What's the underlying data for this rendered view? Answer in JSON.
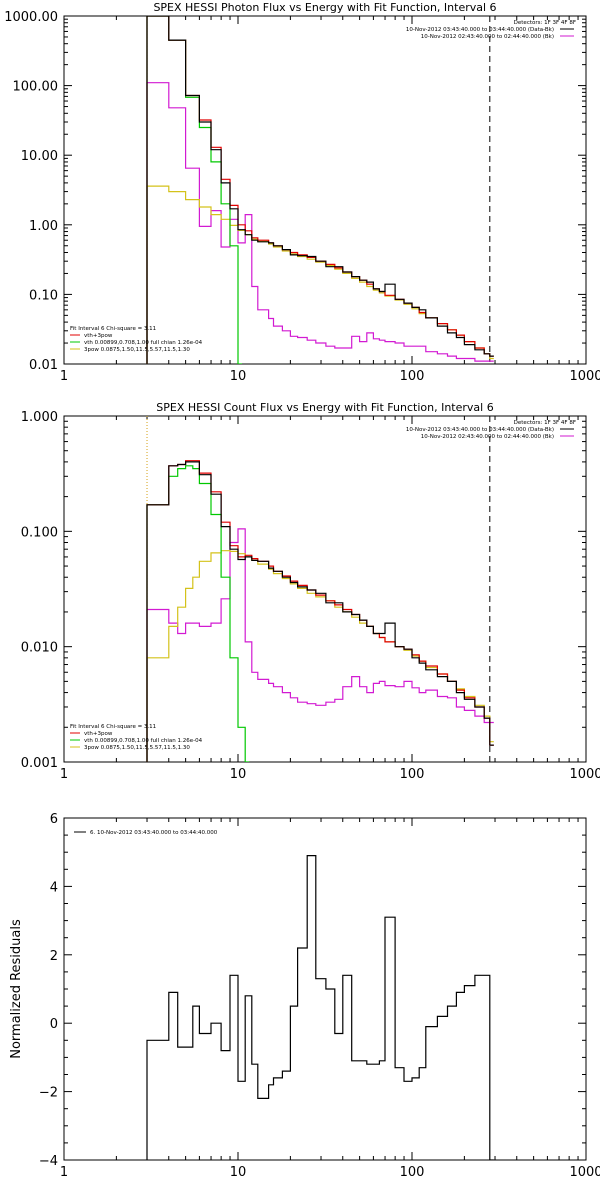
{
  "chart_data": [
    {
      "type": "line",
      "title": "SPEX HESSI Photon Flux vs Energy with Fit Function, Interval 6",
      "xlabel": "",
      "ylabel": "",
      "xscale": "log",
      "yscale": "log",
      "xlim": [
        1,
        1000
      ],
      "ylim": [
        0.01,
        1000
      ],
      "xticks": [
        "1",
        "10",
        "100",
        "1000"
      ],
      "yticks": [
        "0.01",
        "0.10",
        "1.00",
        "10.00",
        "100.00",
        "1000.00"
      ],
      "info_lines": [
        "Detectors: 1F 3F 4F 8F",
        "10-Nov-2012 03:43:40.000 to 03:44:40.000 (Data-Bk)",
        "10-Nov-2012 02:43:40.000 to 02:44:40.000 (Bk)"
      ],
      "legend_header": "Fit Interval 6   Chi-square = 3.11",
      "legend_position": "bottom-left",
      "vlines": [
        {
          "x": 3,
          "style": "dotted",
          "color": "#d4a017"
        },
        {
          "x": 280,
          "style": "dashed",
          "color": "#000000"
        }
      ],
      "series": [
        {
          "name": "vth+3pow",
          "color": "#e00000",
          "style": "step",
          "x": [
            3,
            3.5,
            4,
            5,
            6,
            7,
            8,
            9,
            10,
            11,
            12,
            13,
            15,
            16,
            18,
            20,
            22,
            25,
            28,
            32,
            36,
            40,
            45,
            50,
            55,
            60,
            65,
            70,
            80,
            90,
            100,
            110,
            120,
            140,
            160,
            180,
            200,
            230,
            260,
            280
          ],
          "y": [
            1000,
            1000,
            450,
            72,
            32,
            13,
            4.5,
            1.9,
            1.0,
            0.82,
            0.65,
            0.6,
            0.55,
            0.5,
            0.44,
            0.4,
            0.37,
            0.34,
            0.3,
            0.27,
            0.24,
            0.21,
            0.18,
            0.16,
            0.14,
            0.12,
            0.11,
            0.097,
            0.085,
            0.075,
            0.065,
            0.055,
            0.046,
            0.038,
            0.031,
            0.026,
            0.021,
            0.017,
            0.014,
            0.013
          ]
        },
        {
          "name": "Data-Bk",
          "color": "#000000",
          "style": "step",
          "x": [
            3,
            3.5,
            4,
            5,
            6,
            7,
            8,
            9,
            10,
            11,
            12,
            13,
            15,
            16,
            18,
            20,
            22,
            25,
            28,
            32,
            36,
            40,
            45,
            50,
            55,
            60,
            65,
            70,
            80,
            90,
            100,
            110,
            120,
            140,
            160,
            180,
            200,
            230,
            260,
            280
          ],
          "y": [
            1000,
            1000,
            450,
            72,
            30,
            12,
            4.0,
            1.7,
            0.85,
            0.72,
            0.6,
            0.57,
            0.55,
            0.5,
            0.44,
            0.37,
            0.36,
            0.35,
            0.3,
            0.25,
            0.25,
            0.21,
            0.18,
            0.16,
            0.15,
            0.12,
            0.11,
            0.14,
            0.085,
            0.075,
            0.065,
            0.06,
            0.046,
            0.035,
            0.028,
            0.024,
            0.019,
            0.016,
            0.014,
            0.013
          ]
        },
        {
          "name": "vth 0.00899,0.708,1.00  full chian 1.26e-04",
          "color": "#00c800",
          "style": "step",
          "x": [
            3,
            3.5,
            4,
            5,
            6,
            7,
            8,
            9,
            10
          ],
          "y": [
            1000,
            1000,
            450,
            68,
            25,
            8,
            2.0,
            0.5,
            0.01
          ]
        },
        {
          "name": "3pow 0.0875,1.50,11.5,5.57,11.5,1.30",
          "color": "#d4c21a",
          "style": "step",
          "x": [
            3,
            3.5,
            4,
            5,
            6,
            7,
            8,
            9,
            10,
            11,
            12,
            13,
            15,
            16,
            18,
            20,
            22,
            25,
            28,
            32,
            36,
            40,
            45,
            50,
            55,
            60,
            65,
            70,
            80,
            90,
            100,
            110,
            120,
            140,
            160,
            180,
            200,
            230,
            260,
            280
          ],
          "y": [
            3.6,
            3.6,
            3.0,
            2.3,
            1.8,
            1.4,
            1.2,
            0.98,
            0.83,
            0.72,
            0.62,
            0.58,
            0.53,
            0.48,
            0.42,
            0.38,
            0.35,
            0.32,
            0.29,
            0.26,
            0.23,
            0.2,
            0.17,
            0.15,
            0.13,
            0.115,
            0.105,
            0.095,
            0.083,
            0.072,
            0.062,
            0.053,
            0.046,
            0.038,
            0.031,
            0.026,
            0.021,
            0.017,
            0.014,
            0.012
          ]
        },
        {
          "name": "Bk",
          "color": "#d21ad2",
          "style": "step",
          "x": [
            3,
            3.5,
            4,
            5,
            6,
            7,
            8,
            9,
            10,
            11,
            12,
            13,
            15,
            16,
            18,
            20,
            22,
            25,
            28,
            32,
            36,
            40,
            45,
            50,
            55,
            60,
            65,
            70,
            80,
            90,
            100,
            110,
            120,
            140,
            160,
            180,
            200,
            230,
            260,
            280
          ],
          "y": [
            110,
            110,
            48,
            6.5,
            0.95,
            1.6,
            0.48,
            1.2,
            0.55,
            1.4,
            0.13,
            0.06,
            0.045,
            0.035,
            0.03,
            0.025,
            0.024,
            0.022,
            0.02,
            0.018,
            0.017,
            0.017,
            0.025,
            0.021,
            0.028,
            0.023,
            0.022,
            0.021,
            0.02,
            0.018,
            0.018,
            0.018,
            0.015,
            0.014,
            0.013,
            0.012,
            0.012,
            0.011,
            0.011,
            0.011
          ]
        }
      ]
    },
    {
      "type": "line",
      "title": "SPEX HESSI Count Flux vs Energy with Fit Function, Interval 6",
      "xlabel": "",
      "ylabel": "",
      "xscale": "log",
      "yscale": "log",
      "xlim": [
        1,
        1000
      ],
      "ylim": [
        0.001,
        1.0
      ],
      "xticks": [
        "1",
        "10",
        "100",
        "1000"
      ],
      "yticks": [
        "0.001",
        "0.010",
        "0.100",
        "1.000"
      ],
      "info_lines": [
        "Detectors: 1F 3F 4F 8F",
        "10-Nov-2012 03:43:40.000 to 03:44:40.000 (Data-Bk)",
        "10-Nov-2012 02:43:40.000 to 02:44:40.000 (Bk)"
      ],
      "legend_header": "Fit Interval 6   Chi-square = 3.11",
      "legend_position": "bottom-left",
      "vlines": [
        {
          "x": 3,
          "style": "dotted",
          "color": "#d4a017"
        },
        {
          "x": 280,
          "style": "dashed",
          "color": "#000000"
        }
      ],
      "series": [
        {
          "name": "vth+3pow",
          "color": "#e00000",
          "style": "step",
          "x": [
            3,
            3.5,
            4,
            4.5,
            5,
            5.5,
            6,
            7,
            8,
            9,
            10,
            11,
            12,
            13,
            15,
            16,
            18,
            20,
            22,
            25,
            28,
            32,
            36,
            40,
            45,
            50,
            55,
            60,
            65,
            70,
            80,
            90,
            100,
            110,
            120,
            140,
            160,
            180,
            200,
            230,
            260,
            280
          ],
          "y": [
            0.17,
            0.17,
            0.37,
            0.38,
            0.41,
            0.41,
            0.32,
            0.22,
            0.12,
            0.075,
            0.06,
            0.062,
            0.058,
            0.055,
            0.05,
            0.045,
            0.041,
            0.037,
            0.034,
            0.031,
            0.028,
            0.025,
            0.023,
            0.021,
            0.019,
            0.017,
            0.015,
            0.013,
            0.012,
            0.011,
            0.01,
            0.0095,
            0.0085,
            0.0075,
            0.0068,
            0.0058,
            0.005,
            0.0042,
            0.0036,
            0.003,
            0.0024,
            0.0014
          ]
        },
        {
          "name": "Data-Bk",
          "color": "#000000",
          "style": "step",
          "x": [
            3,
            3.5,
            4,
            4.5,
            5,
            5.5,
            6,
            7,
            8,
            9,
            10,
            11,
            12,
            13,
            15,
            16,
            18,
            20,
            22,
            25,
            28,
            32,
            36,
            40,
            45,
            50,
            55,
            60,
            65,
            70,
            80,
            90,
            100,
            110,
            120,
            140,
            160,
            180,
            200,
            230,
            260,
            280
          ],
          "y": [
            0.17,
            0.17,
            0.37,
            0.38,
            0.4,
            0.4,
            0.31,
            0.21,
            0.11,
            0.07,
            0.057,
            0.06,
            0.056,
            0.055,
            0.048,
            0.045,
            0.04,
            0.036,
            0.033,
            0.031,
            0.029,
            0.024,
            0.024,
            0.02,
            0.019,
            0.017,
            0.015,
            0.013,
            0.013,
            0.016,
            0.01,
            0.0095,
            0.008,
            0.0072,
            0.0063,
            0.0055,
            0.005,
            0.004,
            0.0035,
            0.003,
            0.0024,
            0.0014
          ]
        },
        {
          "name": "vth 0.00899,0.708,1.00  full chian 1.26e-04",
          "color": "#00c800",
          "style": "step",
          "x": [
            3,
            3.5,
            4,
            4.5,
            5,
            5.5,
            6,
            7,
            8,
            9,
            10,
            11
          ],
          "y": [
            0.17,
            0.17,
            0.3,
            0.35,
            0.37,
            0.35,
            0.26,
            0.14,
            0.04,
            0.008,
            0.002,
            0.001
          ]
        },
        {
          "name": "3pow 0.0875,1.50,11.5,5.57,11.5,1.30",
          "color": "#d4c21a",
          "style": "step",
          "x": [
            3,
            3.5,
            4,
            4.5,
            5,
            5.5,
            6,
            7,
            8,
            9,
            10,
            11,
            12,
            13,
            15,
            16,
            18,
            20,
            22,
            25,
            28,
            32,
            36,
            40,
            45,
            50,
            55,
            60,
            65,
            70,
            80,
            90,
            100,
            110,
            120,
            140,
            160,
            180,
            200,
            230,
            260,
            280
          ],
          "y": [
            0.008,
            0.008,
            0.015,
            0.022,
            0.032,
            0.04,
            0.055,
            0.065,
            0.068,
            0.067,
            0.064,
            0.06,
            0.056,
            0.052,
            0.047,
            0.043,
            0.039,
            0.035,
            0.032,
            0.029,
            0.027,
            0.025,
            0.022,
            0.02,
            0.018,
            0.016,
            0.015,
            0.013,
            0.012,
            0.011,
            0.01,
            0.0093,
            0.0083,
            0.0075,
            0.0066,
            0.0058,
            0.005,
            0.0043,
            0.0037,
            0.0031,
            0.0025,
            0.0015
          ]
        },
        {
          "name": "Bk",
          "color": "#d21ad2",
          "style": "step",
          "x": [
            3,
            3.5,
            4,
            4.5,
            5,
            5.5,
            6,
            7,
            8,
            9,
            10,
            11,
            12,
            13,
            15,
            16,
            18,
            20,
            22,
            25,
            28,
            32,
            36,
            40,
            45,
            50,
            55,
            60,
            65,
            70,
            80,
            90,
            100,
            110,
            120,
            140,
            160,
            180,
            200,
            230,
            260,
            280
          ],
          "y": [
            0.021,
            0.021,
            0.016,
            0.013,
            0.016,
            0.016,
            0.015,
            0.016,
            0.026,
            0.08,
            0.105,
            0.011,
            0.006,
            0.0052,
            0.0048,
            0.0045,
            0.004,
            0.0036,
            0.0033,
            0.0032,
            0.0031,
            0.0033,
            0.0035,
            0.0045,
            0.0055,
            0.0045,
            0.004,
            0.0048,
            0.005,
            0.0046,
            0.0045,
            0.005,
            0.0044,
            0.004,
            0.0042,
            0.0037,
            0.0036,
            0.003,
            0.0028,
            0.0025,
            0.0022,
            0.0022
          ]
        }
      ]
    },
    {
      "type": "line",
      "title": "",
      "xlabel": "",
      "ylabel": "Normalized Residuals",
      "xscale": "log",
      "yscale": "linear",
      "xlim": [
        1,
        1000
      ],
      "ylim": [
        -4,
        6
      ],
      "xticks": [
        "1",
        "10",
        "100",
        "1000"
      ],
      "yticks": [
        "−4",
        "−2",
        "0",
        "2",
        "4",
        "6"
      ],
      "legend_position": "top-left",
      "series": [
        {
          "name": "6. 10-Nov-2012 03:43:40.000 to 03:44:40.000",
          "color": "#000000",
          "style": "step",
          "x": [
            3,
            4,
            4.5,
            5,
            5.5,
            6,
            7,
            8,
            9,
            10,
            11,
            12,
            13,
            15,
            16,
            18,
            20,
            22,
            25,
            28,
            32,
            36,
            40,
            45,
            50,
            55,
            60,
            65,
            70,
            80,
            90,
            100,
            110,
            120,
            140,
            160,
            180,
            200,
            230,
            260,
            280
          ],
          "y": [
            -0.5,
            0.9,
            -0.7,
            -0.7,
            0.5,
            -0.3,
            0.0,
            -0.8,
            1.4,
            -1.7,
            0.8,
            -1.2,
            -2.2,
            -1.8,
            -1.6,
            -1.4,
            0.5,
            2.2,
            4.9,
            1.3,
            1.0,
            -0.3,
            1.4,
            -1.1,
            -1.1,
            -1.2,
            -1.2,
            -1.1,
            3.1,
            -1.3,
            -1.7,
            -1.6,
            -1.3,
            -0.1,
            0.2,
            0.5,
            0.9,
            1.1,
            1.4,
            1.4,
            -4.0
          ]
        }
      ]
    }
  ]
}
